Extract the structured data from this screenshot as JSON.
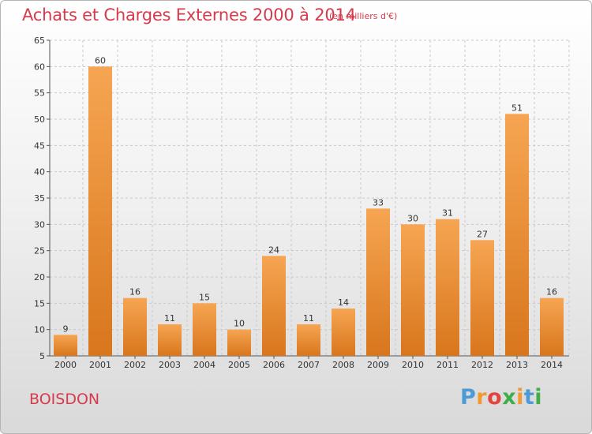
{
  "header": {
    "title": "Achats et Charges Externes 2000 à 2014",
    "unit": "(en milliers d'€)"
  },
  "footer": {
    "place": "BOISDON",
    "logo_letters": [
      "P",
      "r",
      "o",
      "x",
      "i",
      "t",
      "i"
    ]
  },
  "colors": {
    "title": "#d63a4c",
    "bar_light": "#f6a552",
    "bar_dark": "#d8761c",
    "grid": "#c9c9c9",
    "logo_letters": [
      "#4c9ad6",
      "#f29a2e",
      "#e2453c",
      "#3fae49",
      "#f29a2e",
      "#4c9ad6",
      "#3fae49"
    ]
  },
  "chart_data": {
    "type": "bar",
    "title": "Achats et Charges Externes 2000 à 2014",
    "subtitle": "(en milliers d'€)",
    "xlabel": "",
    "ylabel": "",
    "categories": [
      "2000",
      "2001",
      "2002",
      "2003",
      "2004",
      "2005",
      "2006",
      "2007",
      "2008",
      "2009",
      "2010",
      "2011",
      "2012",
      "2013",
      "2014"
    ],
    "values": [
      9,
      60,
      16,
      11,
      15,
      10,
      24,
      11,
      14,
      33,
      30,
      31,
      27,
      51,
      16
    ],
    "ylim": [
      5,
      65
    ],
    "yticks": [
      5,
      10,
      15,
      20,
      25,
      30,
      35,
      40,
      45,
      50,
      55,
      60,
      65
    ],
    "grid": true,
    "data_labels": true
  }
}
